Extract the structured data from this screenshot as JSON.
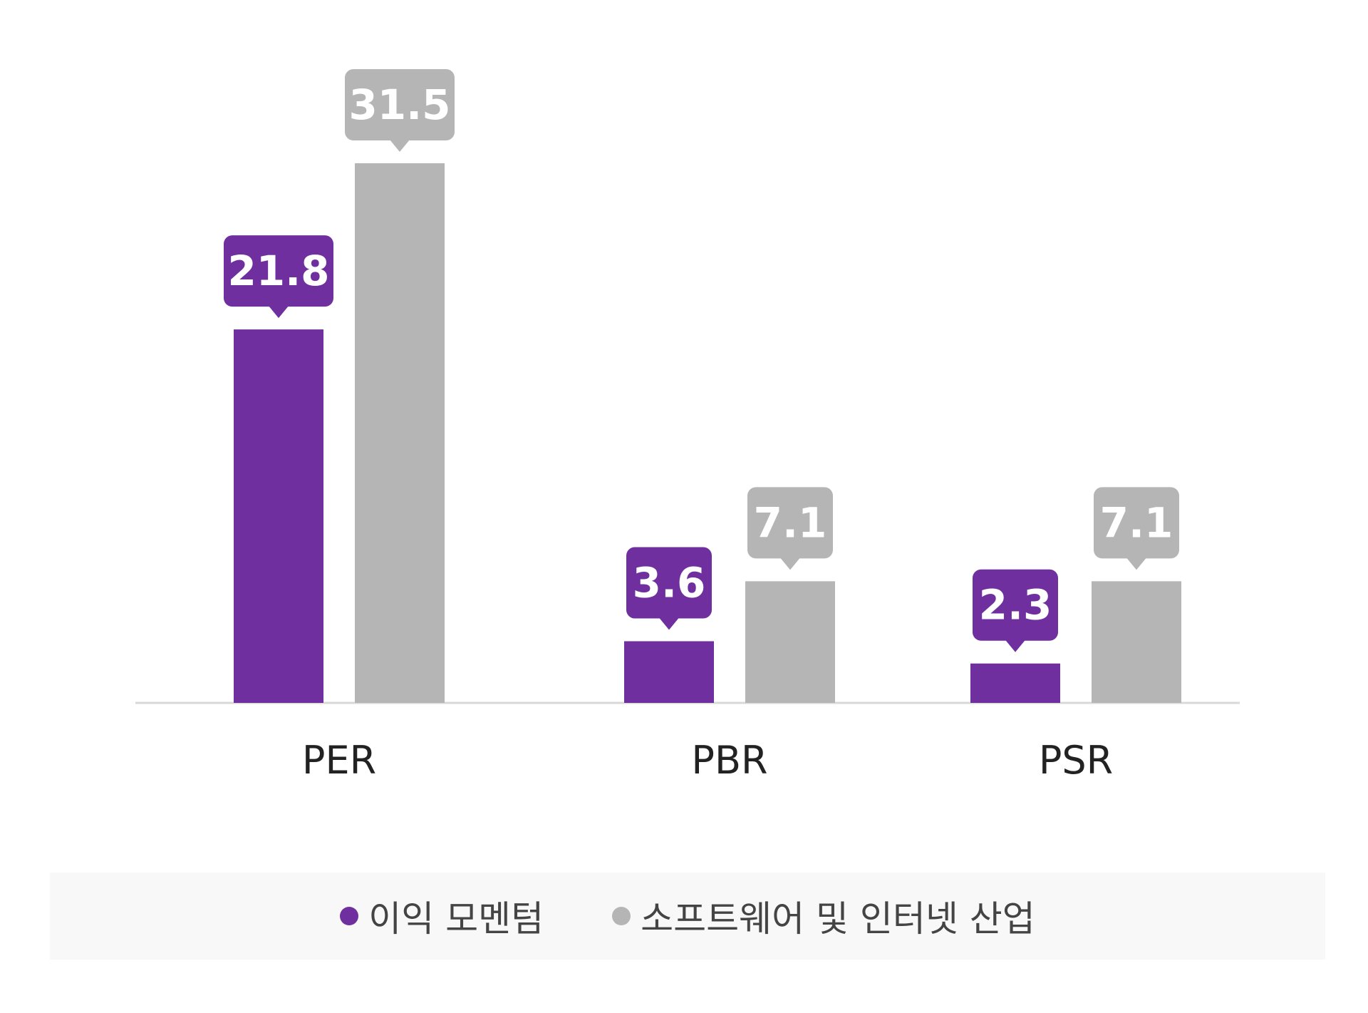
{
  "chart_data": {
    "type": "bar",
    "categories": [
      "PER",
      "PBR",
      "PSR"
    ],
    "series": [
      {
        "name": "이익 모멘텀",
        "values": [
          21.8,
          3.6,
          2.3
        ],
        "color": "#6f2f9f"
      },
      {
        "name": "소프트웨어 및 인터넷 산업",
        "values": [
          31.5,
          7.1,
          7.1
        ],
        "color": "#b5b5b5"
      }
    ],
    "value_labels": [
      [
        "21.8",
        "3.6",
        "2.3"
      ],
      [
        "31.5",
        "7.1",
        "7.1"
      ]
    ],
    "title": "",
    "xlabel": "",
    "ylabel": "",
    "ylim": [
      0,
      32
    ],
    "grid": false,
    "legend_position": "bottom"
  }
}
